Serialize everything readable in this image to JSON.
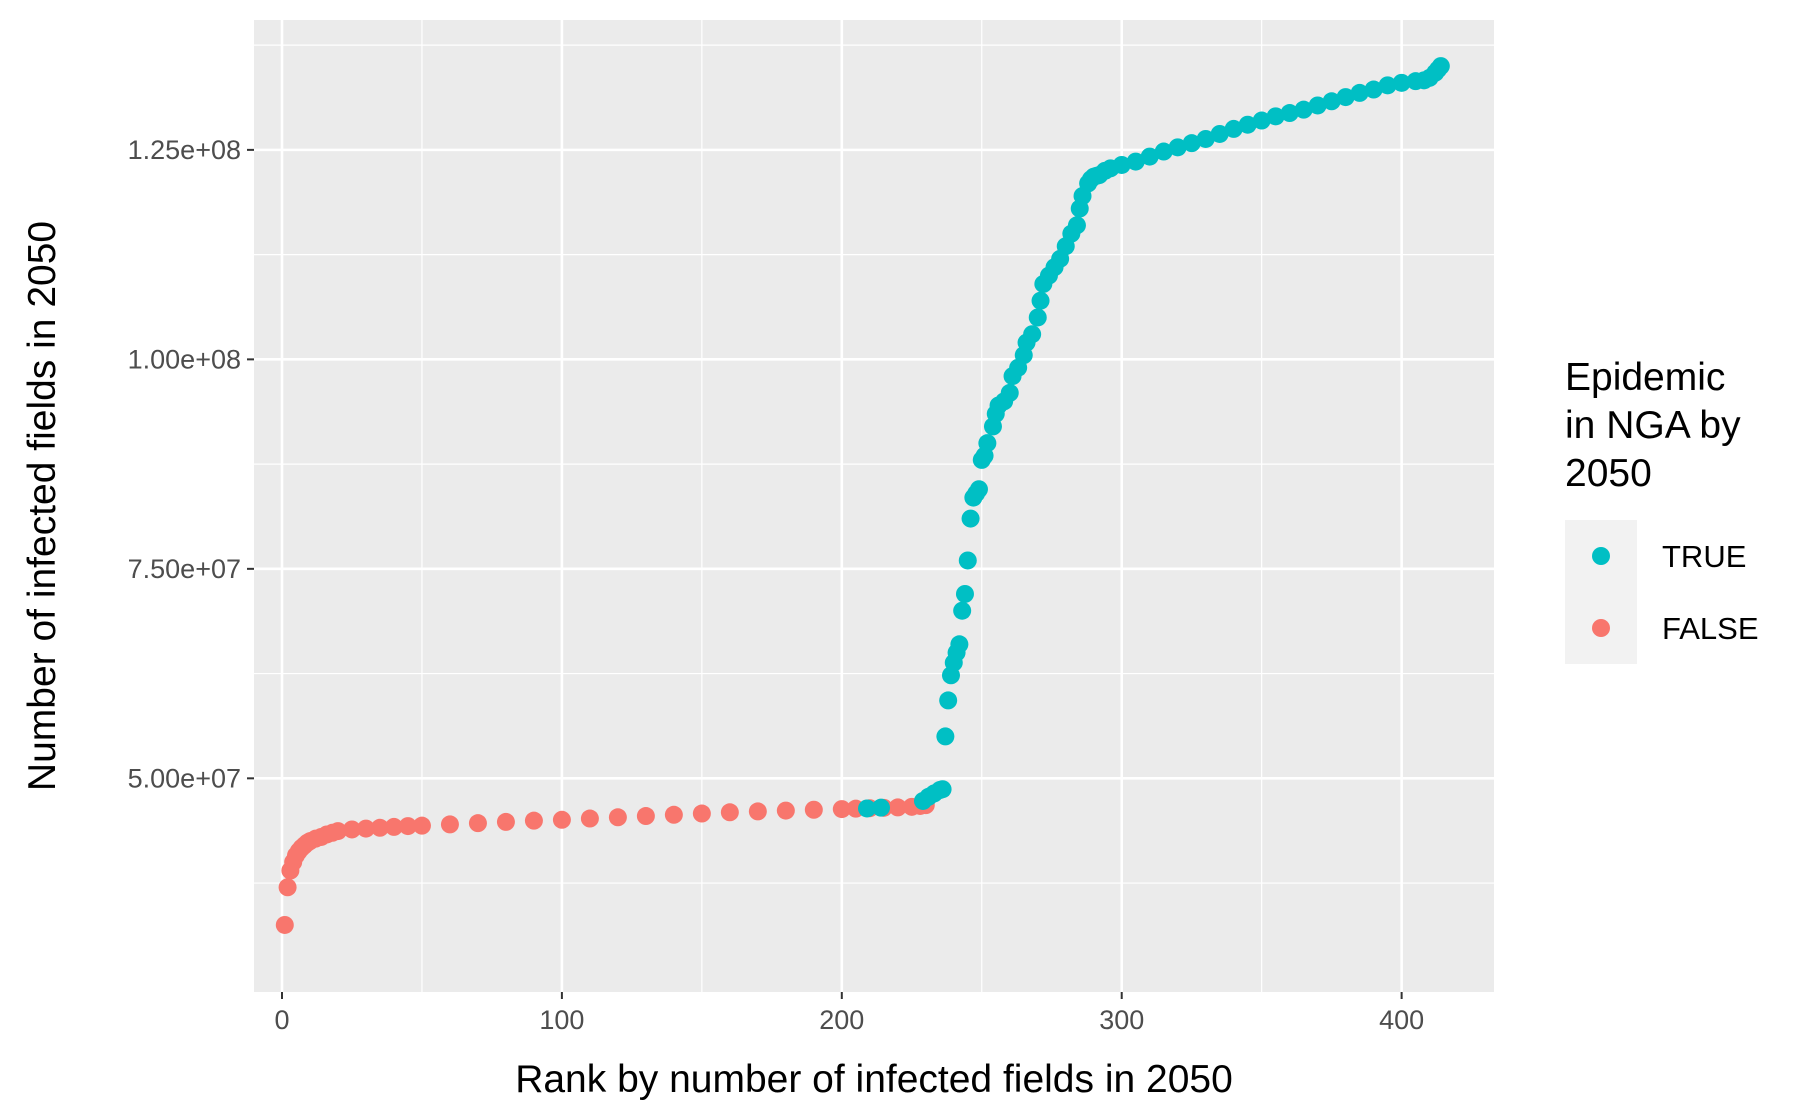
{
  "chart_data": {
    "type": "scatter",
    "xlabel": "Rank by number of infected fields in 2050",
    "ylabel": "Number of infected fields in 2050",
    "xlim": [
      -10,
      433
    ],
    "ylim": [
      24500000,
      140500000
    ],
    "x_ticks": [
      0,
      100,
      200,
      300,
      400
    ],
    "x_tick_labels": [
      "0",
      "100",
      "200",
      "300",
      "400"
    ],
    "y_ticks": [
      50000000,
      75000000,
      100000000,
      125000000
    ],
    "y_tick_labels": [
      "5.00e+07",
      "7.50e+07",
      "1.00e+08",
      "1.25e+08"
    ],
    "grid": true,
    "legend": {
      "title_lines": [
        "Epidemic",
        "in NGA by",
        "2050"
      ],
      "placement": "right",
      "entries": [
        {
          "label": "TRUE",
          "color": "#00BFC4"
        },
        {
          "label": "FALSE",
          "color": "#F8766D"
        }
      ]
    },
    "series": [
      {
        "name": "FALSE",
        "color": "#F8766D",
        "x": [
          1,
          2,
          3,
          4,
          5,
          6,
          7,
          8,
          9,
          10,
          12,
          14,
          16,
          18,
          20,
          25,
          30,
          35,
          40,
          45,
          50,
          60,
          70,
          80,
          90,
          100,
          110,
          120,
          130,
          140,
          150,
          160,
          170,
          180,
          190,
          200,
          205,
          210,
          215,
          220,
          225,
          228,
          230
        ],
        "y": [
          32500000,
          37000000,
          39000000,
          40000000,
          40800000,
          41300000,
          41700000,
          42000000,
          42300000,
          42500000,
          42800000,
          43000000,
          43300000,
          43500000,
          43700000,
          43900000,
          44000000,
          44100000,
          44200000,
          44300000,
          44350000,
          44500000,
          44650000,
          44800000,
          44950000,
          45050000,
          45200000,
          45350000,
          45500000,
          45650000,
          45800000,
          45950000,
          46050000,
          46150000,
          46250000,
          46330000,
          46380000,
          46430000,
          46480000,
          46530000,
          46600000,
          46700000,
          46800000
        ]
      },
      {
        "name": "TRUE",
        "color": "#00BFC4",
        "x": [
          209,
          214,
          229,
          231,
          233,
          235,
          236,
          237,
          238,
          239,
          240,
          241,
          242,
          243,
          244,
          245,
          246,
          247,
          248,
          249,
          250,
          251,
          252,
          254,
          255,
          256,
          258,
          260,
          261,
          263,
          265,
          266,
          268,
          270,
          271,
          272,
          274,
          276,
          278,
          280,
          282,
          284,
          285,
          286,
          288,
          289,
          290,
          291,
          292,
          294,
          296,
          300,
          305,
          310,
          315,
          320,
          325,
          330,
          335,
          340,
          345,
          350,
          355,
          360,
          365,
          370,
          375,
          380,
          385,
          390,
          395,
          400,
          405,
          408,
          410,
          412,
          413,
          414
        ],
        "y": [
          46400000,
          46500000,
          47300000,
          47800000,
          48200000,
          48600000,
          48700000,
          55000000,
          59300000,
          62300000,
          63800000,
          65000000,
          66000000,
          70000000,
          72000000,
          76000000,
          81000000,
          83500000,
          84000000,
          84500000,
          88000000,
          88500000,
          90000000,
          92000000,
          93500000,
          94500000,
          95000000,
          96000000,
          98000000,
          99000000,
          100500000,
          102000000,
          103000000,
          105000000,
          107000000,
          109000000,
          110000000,
          111000000,
          112000000,
          113500000,
          115000000,
          116000000,
          118000000,
          119500000,
          121000000,
          121500000,
          121800000,
          121900000,
          122000000,
          122500000,
          122800000,
          123200000,
          123600000,
          124200000,
          124800000,
          125300000,
          125800000,
          126300000,
          126900000,
          127500000,
          128000000,
          128500000,
          129000000,
          129400000,
          129800000,
          130300000,
          130800000,
          131300000,
          131800000,
          132200000,
          132700000,
          133000000,
          133200000,
          133300000,
          133600000,
          134200000,
          134600000,
          135000000
        ]
      }
    ]
  }
}
